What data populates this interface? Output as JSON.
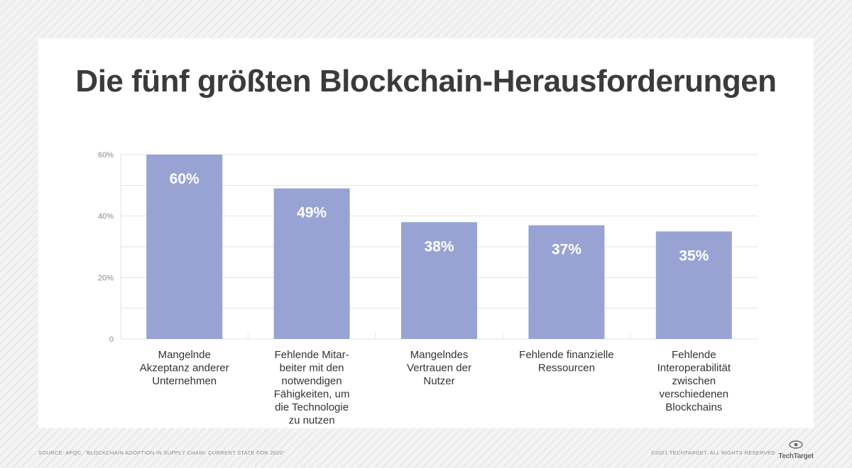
{
  "title": "Die fünf größten Blockchain-Herausforderungen",
  "footer": {
    "source": "SOURCE: APQC, “BLOCKCHAIN ADOPTION IN SUPPLY CHAIN: CURRENT STATE FOR 2020”",
    "copyright": "©2021 TECHTARGET. ALL RIGHTS RESERVED",
    "logo_text": "TechTarget",
    "logo_icon": "eye-icon"
  },
  "colors": {
    "bar": "#98a3d4",
    "grid": "#e3e3e3",
    "axis_text": "#8a8a8a",
    "label_text": "#333333",
    "bar_label": "#ffffff"
  },
  "chart_data": {
    "type": "bar",
    "title": "Die fünf größten Blockchain-Herausforderungen",
    "categories": [
      [
        "Mangelnde",
        "Akzeptanz anderer",
        "Unternehmen"
      ],
      [
        "Fehlende Mitar-",
        "beiter mit den",
        "notwendigen",
        "Fähigkeiten, um",
        "die Technologie",
        "zu nutzen"
      ],
      [
        "Mangelndes",
        "Vertrauen der",
        "Nutzer"
      ],
      [
        "Fehlende finanzielle",
        "Ressourcen"
      ],
      [
        "Fehlende",
        "Interoperabilität",
        "zwischen",
        "verschiedenen",
        "Blockchains"
      ]
    ],
    "values": [
      60,
      49,
      38,
      37,
      35
    ],
    "data_labels": [
      "60%",
      "49%",
      "38%",
      "37%",
      "35%"
    ],
    "yticks": [
      0,
      20,
      40,
      60
    ],
    "ytick_labels": [
      "0",
      "20%",
      "40%",
      "60%"
    ],
    "ylim": [
      0,
      60
    ],
    "grid": true,
    "legend": "none"
  }
}
